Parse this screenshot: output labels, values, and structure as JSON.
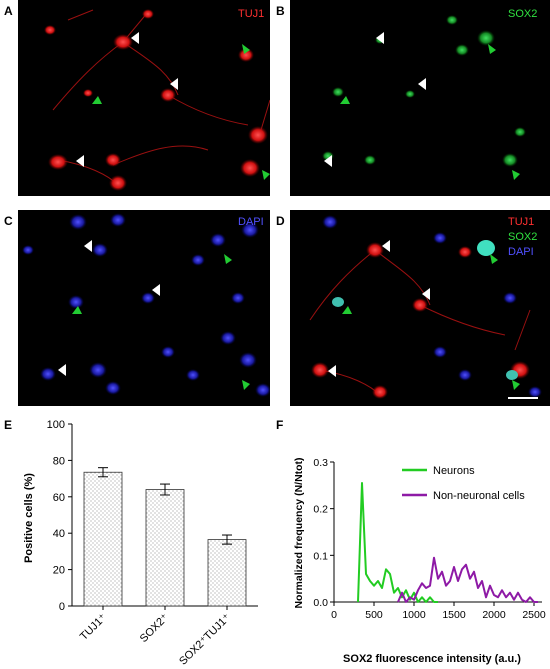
{
  "panels": {
    "A": {
      "letter": "A",
      "channel": "TUJ1"
    },
    "B": {
      "letter": "B",
      "channel": "SOX2"
    },
    "C": {
      "letter": "C",
      "channel": "DAPI"
    },
    "D": {
      "letter": "D",
      "channels": [
        "TUJ1",
        "SOX2",
        "DAPI"
      ]
    },
    "E": {
      "letter": "E"
    },
    "F": {
      "letter": "F"
    }
  },
  "colors": {
    "tuj1": "#ff2020",
    "sox2": "#20d840",
    "dapi": "#3a3aff",
    "neurons": "#22cc22",
    "non_neuronal": "#8e1aa6"
  },
  "chart_data": [
    {
      "type": "bar",
      "ylabel": "Positive cells (%)",
      "categories": [
        "TUJ1⁺",
        "SOX2⁺",
        "SOX2⁺TUJ1⁺"
      ],
      "values": [
        73.5,
        64,
        36.5
      ],
      "errors": [
        2.5,
        3,
        2.5
      ],
      "ylim": [
        0,
        100
      ],
      "yticks": [
        "0",
        "20",
        "40",
        "60",
        "80",
        "100"
      ]
    },
    {
      "type": "line",
      "xlabel": "SOX2 fluorescence intensity (a.u.)",
      "ylabel": "Normalized frequency (N/Ntot)",
      "xlim": [
        0,
        2600
      ],
      "ylim": [
        0,
        0.3
      ],
      "xticks": [
        "0",
        "500",
        "1000",
        "1500",
        "2000",
        "2500"
      ],
      "yticks": [
        "0.0",
        "0.1",
        "0.2",
        "0.3"
      ],
      "legend": "top-right",
      "series": [
        {
          "name": "Neurons",
          "x": [
            300,
            350,
            400,
            450,
            500,
            550,
            600,
            650,
            700,
            750,
            800,
            850,
            900,
            950,
            1000,
            1050,
            1100,
            1150,
            1200,
            1250,
            1300
          ],
          "y": [
            0,
            0.255,
            0.06,
            0.045,
            0.035,
            0.045,
            0.03,
            0.07,
            0.06,
            0.02,
            0.03,
            0.01,
            0.025,
            0.005,
            0.02,
            0,
            0.01,
            0,
            0.01,
            0,
            0
          ]
        },
        {
          "name": "Non-neuronal cells",
          "x": [
            800,
            850,
            900,
            950,
            1000,
            1050,
            1100,
            1150,
            1200,
            1250,
            1300,
            1350,
            1400,
            1450,
            1500,
            1550,
            1600,
            1650,
            1700,
            1750,
            1800,
            1850,
            1900,
            1950,
            2000,
            2050,
            2100,
            2150,
            2200,
            2250,
            2300,
            2350,
            2400,
            2450,
            2500,
            2550
          ],
          "y": [
            0,
            0.02,
            0,
            0.01,
            0.005,
            0.025,
            0.04,
            0.03,
            0.035,
            0.095,
            0.05,
            0.065,
            0.035,
            0.045,
            0.075,
            0.045,
            0.07,
            0.08,
            0.05,
            0.065,
            0.03,
            0.045,
            0.01,
            0.035,
            0.015,
            0.01,
            0.025,
            0.01,
            0.02,
            0.005,
            0.02,
            0.005,
            0,
            0.01,
            0,
            0
          ]
        }
      ]
    }
  ]
}
